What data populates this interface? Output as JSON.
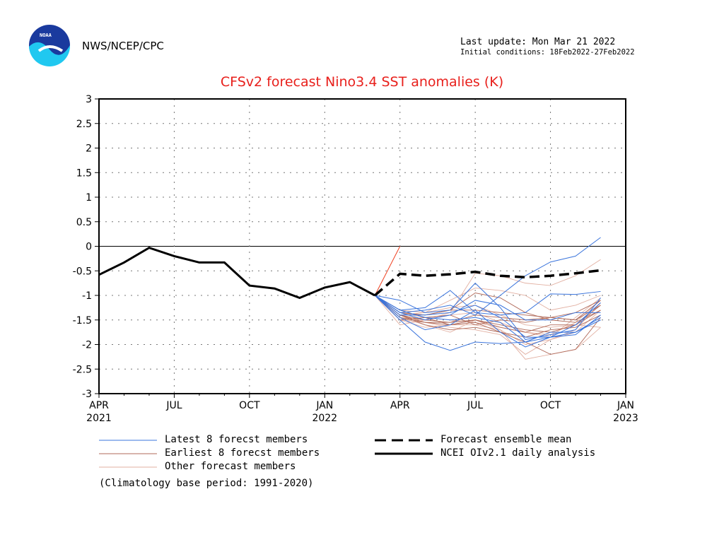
{
  "header": {
    "agency": "NWS/NCEP/CPC",
    "logo_text": "NOAA",
    "last_update": "Last update: Mon Mar 21 2022",
    "initial_conditions": "Initial conditions: 18Feb2022-27Feb2022"
  },
  "chart_data": {
    "type": "line",
    "title": "CFSv2 forecast Nino3.4 SST anomalies (K)",
    "ylim": [
      -3,
      3
    ],
    "yticks": [
      "3",
      "2.5",
      "2",
      "1.5",
      "1",
      "0.5",
      "0",
      "-0.5",
      "-1",
      "-1.5",
      "-2",
      "-2.5",
      "-3"
    ],
    "xticks": [
      {
        "month": "APR",
        "year": "2021",
        "m": 0
      },
      {
        "month": "JUL",
        "year": "",
        "m": 3
      },
      {
        "month": "OCT",
        "year": "",
        "m": 6
      },
      {
        "month": "JAN",
        "year": "2022",
        "m": 9
      },
      {
        "month": "APR",
        "year": "",
        "m": 12
      },
      {
        "month": "JUL",
        "year": "",
        "m": 15
      },
      {
        "month": "OCT",
        "year": "",
        "m": 18
      },
      {
        "month": "JAN",
        "year": "2023",
        "m": 21
      }
    ],
    "xlim_months": [
      0,
      21
    ],
    "grid": true,
    "observed": {
      "name": "NCEI OIv2.1 daily analysis",
      "start_month": 0,
      "values": [
        -0.58,
        -0.33,
        -0.03,
        -0.2,
        -0.33,
        -0.33,
        -0.8,
        -0.86,
        -1.05,
        -0.84,
        -0.73,
        -1.0
      ]
    },
    "ensemble_mean": {
      "name": "Forecast ensemble mean",
      "start_month": 11,
      "values": [
        -1.0,
        -0.56,
        -0.6,
        -0.57,
        -0.52,
        -0.6,
        -0.63,
        -0.6,
        -0.55,
        -0.49
      ]
    },
    "red_segment": {
      "start_month": 11,
      "values": [
        -1.0,
        0.0
      ]
    },
    "latest_members": {
      "name": "Latest 8 forecst members",
      "color": "#3a74dc",
      "start_month": 11,
      "members": [
        [
          -1,
          -1.35,
          -1.3,
          -1.2,
          -1.4,
          -1.0,
          -0.6,
          -0.32,
          -0.2,
          0.18
        ],
        [
          -1,
          -1.3,
          -1.25,
          -0.9,
          -1.35,
          -1.4,
          -1.35,
          -0.97,
          -0.98,
          -0.92
        ],
        [
          -1,
          -1.5,
          -1.95,
          -2.12,
          -1.95,
          -1.98,
          -1.95,
          -1.85,
          -1.8,
          -1.4
        ],
        [
          -1,
          -1.35,
          -1.5,
          -1.4,
          -1.1,
          -1.2,
          -1.5,
          -1.5,
          -1.35,
          -1.35
        ],
        [
          -1,
          -1.45,
          -1.7,
          -1.6,
          -1.3,
          -1.75,
          -2.05,
          -1.85,
          -1.6,
          -1.15
        ],
        [
          -1,
          -1.4,
          -1.4,
          -1.35,
          -1.2,
          -1.45,
          -1.85,
          -1.85,
          -1.75,
          -1.45
        ],
        [
          -1,
          -1.1,
          -1.35,
          -1.3,
          -0.75,
          -1.25,
          -1.9,
          -1.8,
          -1.7,
          -1.05
        ],
        [
          -1,
          -1.3,
          -1.45,
          -1.5,
          -1.45,
          -1.55,
          -1.95,
          -1.75,
          -1.75,
          -1.5
        ]
      ]
    },
    "earliest_members": {
      "name": "Earliest 8 forecst members",
      "color": "#b06a5a",
      "start_month": 11,
      "members": [
        [
          -1,
          -1.4,
          -1.5,
          -1.55,
          -1.4,
          -1.45,
          -1.5,
          -1.45,
          -1.5,
          -1.2
        ],
        [
          -1,
          -1.45,
          -1.55,
          -1.6,
          -1.55,
          -1.75,
          -1.95,
          -2.2,
          -2.1,
          -1.45
        ],
        [
          -1,
          -1.3,
          -1.45,
          -1.4,
          -1.6,
          -1.5,
          -1.55,
          -1.45,
          -1.5,
          -1.1
        ],
        [
          -1,
          -1.35,
          -1.4,
          -1.3,
          -0.95,
          -1.05,
          -1.35,
          -1.5,
          -1.55,
          -1.3
        ],
        [
          -1,
          -1.5,
          -1.45,
          -1.6,
          -1.5,
          -1.65,
          -1.75,
          -1.6,
          -1.6,
          -1.2
        ],
        [
          -1,
          -1.35,
          -1.4,
          -1.3,
          -1.3,
          -1.35,
          -1.4,
          -1.45,
          -1.35,
          -1.1
        ],
        [
          -1,
          -1.4,
          -1.6,
          -1.7,
          -1.65,
          -1.75,
          -1.85,
          -1.7,
          -1.65,
          -1.4
        ],
        [
          -1,
          -1.4,
          -1.55,
          -1.55,
          -1.5,
          -1.6,
          -1.7,
          -1.75,
          -1.6,
          -1.3
        ]
      ]
    },
    "other_members": {
      "name": "Other forecast members",
      "color": "#e2b0a2",
      "start_month": 11,
      "members": [
        [
          -1,
          -1.6,
          -1.5,
          -1.35,
          -0.55,
          -0.6,
          -0.75,
          -0.8,
          -0.6,
          -0.27
        ],
        [
          -1,
          -1.45,
          -1.6,
          -1.75,
          -1.5,
          -1.7,
          -2.3,
          -2.2,
          -2.1,
          -1.65
        ],
        [
          -1,
          -1.3,
          -1.35,
          -1.1,
          -0.85,
          -0.9,
          -1.0,
          -1.3,
          -1.2,
          -1.0
        ],
        [
          -1,
          -1.5,
          -1.55,
          -1.65,
          -1.7,
          -1.8,
          -2.2,
          -1.9,
          -1.7,
          -1.15
        ],
        [
          -1,
          -1.35,
          -1.45,
          -1.5,
          -1.55,
          -1.65,
          -1.75,
          -1.85,
          -1.45,
          -1.05
        ],
        [
          -1,
          -1.4,
          -1.35,
          -1.25,
          -1.2,
          -1.4,
          -1.6,
          -1.65,
          -1.6,
          -1.65
        ],
        [
          -1,
          -1.45,
          -1.5,
          -1.4,
          -1.35,
          -1.55,
          -1.75,
          -1.8,
          -1.55,
          -1.1
        ],
        [
          -1,
          -1.5,
          -1.65,
          -1.6,
          -1.6,
          -1.7,
          -2.0,
          -1.9,
          -1.75,
          -1.3
        ]
      ]
    },
    "legend": {
      "latest": "Latest 8 forecst members",
      "earliest": "Earliest 8 forecst members",
      "other": "Other forecast members",
      "mean": "Forecast ensemble mean",
      "observed": "NCEI OIv2.1 daily analysis",
      "note": "(Climatology base period: 1991-2020)"
    }
  }
}
